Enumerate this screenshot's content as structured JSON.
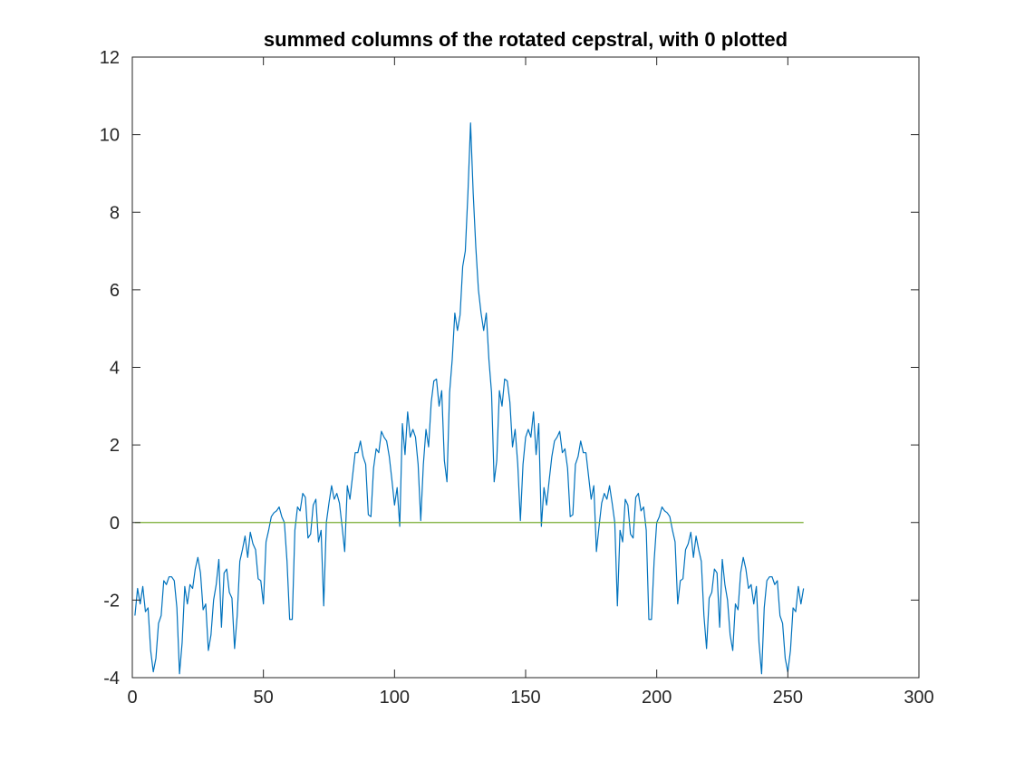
{
  "chart_data": {
    "type": "line",
    "title": "summed columns of the rotated cepstral, with 0 plotted",
    "xlabel": "",
    "ylabel": "",
    "xlim": [
      0,
      300
    ],
    "ylim": [
      -4,
      12
    ],
    "xticks": [
      0,
      50,
      100,
      150,
      200,
      250,
      300
    ],
    "yticks": [
      -4,
      -2,
      0,
      2,
      4,
      6,
      8,
      10,
      12
    ],
    "xtick_labels": [
      "0",
      "50",
      "100",
      "150",
      "200",
      "250",
      "300"
    ],
    "ytick_labels": [
      "-4",
      "-2",
      "0",
      "2",
      "4",
      "6",
      "8",
      "10",
      "12"
    ],
    "grid": false,
    "box": true,
    "series": [
      {
        "name": "summed columns",
        "color": "#0072BD",
        "x_start": 1,
        "x_step": 1,
        "values": [
          -2.4,
          -1.7,
          -2.1,
          -1.65,
          -2.3,
          -2.2,
          -3.3,
          -3.85,
          -3.5,
          -2.6,
          -2.4,
          -1.5,
          -1.6,
          -1.4,
          -1.4,
          -1.5,
          -2.2,
          -3.9,
          -3.1,
          -1.65,
          -2.1,
          -1.6,
          -1.7,
          -1.2,
          -0.9,
          -1.3,
          -2.25,
          -2.1,
          -3.3,
          -2.9,
          -2.0,
          -1.6,
          -0.95,
          -2.7,
          -1.3,
          -1.2,
          -1.8,
          -1.95,
          -3.25,
          -2.4,
          -1.0,
          -0.7,
          -0.35,
          -0.9,
          -0.25,
          -0.55,
          -0.7,
          -1.45,
          -1.5,
          -2.1,
          -0.5,
          -0.2,
          0.15,
          0.25,
          0.3,
          0.4,
          0.15,
          0.0,
          -1.0,
          -2.5,
          -2.5,
          -0.2,
          0.4,
          0.3,
          0.75,
          0.65,
          -0.4,
          -0.3,
          0.45,
          0.6,
          -0.5,
          -0.2,
          -2.15,
          0.0,
          0.5,
          0.95,
          0.6,
          0.75,
          0.5,
          -0.1,
          -0.75,
          0.95,
          0.6,
          1.2,
          1.8,
          1.8,
          2.1,
          1.7,
          1.5,
          0.2,
          0.15,
          1.4,
          1.9,
          1.8,
          2.35,
          2.2,
          2.1,
          1.7,
          1.1,
          0.45,
          0.9,
          -0.1,
          2.55,
          1.75,
          2.85,
          2.2,
          2.4,
          2.2,
          1.5,
          0.05,
          1.5,
          2.4,
          1.95,
          3.1,
          3.65,
          3.7,
          3.0,
          3.4,
          1.6,
          1.05,
          3.35,
          4.2,
          5.4,
          4.95,
          5.35,
          6.6,
          7.0,
          8.5,
          10.3,
          8.5,
          7.1,
          6.0,
          5.4,
          4.95,
          5.4,
          4.2,
          3.35,
          1.05,
          1.6,
          3.4,
          3.0,
          3.7,
          3.65,
          3.1,
          1.95,
          2.4,
          1.5,
          0.05,
          1.5,
          2.2,
          2.4,
          2.2,
          2.85,
          1.75,
          2.55,
          -0.1,
          0.9,
          0.45,
          1.1,
          1.7,
          2.1,
          2.2,
          2.35,
          1.8,
          1.9,
          1.4,
          0.15,
          0.2,
          1.5,
          1.7,
          2.1,
          1.8,
          1.8,
          1.2,
          0.6,
          0.95,
          -0.75,
          -0.1,
          0.5,
          0.75,
          0.6,
          0.95,
          0.5,
          0.0,
          -2.15,
          -0.2,
          -0.5,
          0.6,
          0.45,
          -0.3,
          -0.4,
          0.65,
          0.75,
          0.3,
          0.4,
          -0.2,
          -2.5,
          -2.5,
          -1.0,
          0.0,
          0.15,
          0.4,
          0.3,
          0.25,
          0.15,
          -0.2,
          -0.5,
          -2.1,
          -1.5,
          -1.45,
          -0.7,
          -0.55,
          -0.25,
          -0.9,
          -0.35,
          -0.7,
          -1.0,
          -2.4,
          -3.25,
          -1.95,
          -1.8,
          -1.2,
          -1.3,
          -2.7,
          -0.95,
          -1.6,
          -2.0,
          -2.9,
          -3.3,
          -2.1,
          -2.25,
          -1.3,
          -0.9,
          -1.2,
          -1.7,
          -1.6,
          -2.1,
          -1.65,
          -3.1,
          -3.9,
          -2.2,
          -1.5,
          -1.4,
          -1.4,
          -1.6,
          -1.5,
          -2.4,
          -2.6,
          -3.5,
          -3.85,
          -3.3,
          -2.2,
          -2.3,
          -1.65,
          -2.1,
          -1.7
        ]
      },
      {
        "name": "zero line",
        "color": "#77AC30",
        "x": [
          1,
          256
        ],
        "values": [
          0,
          0
        ]
      }
    ]
  }
}
